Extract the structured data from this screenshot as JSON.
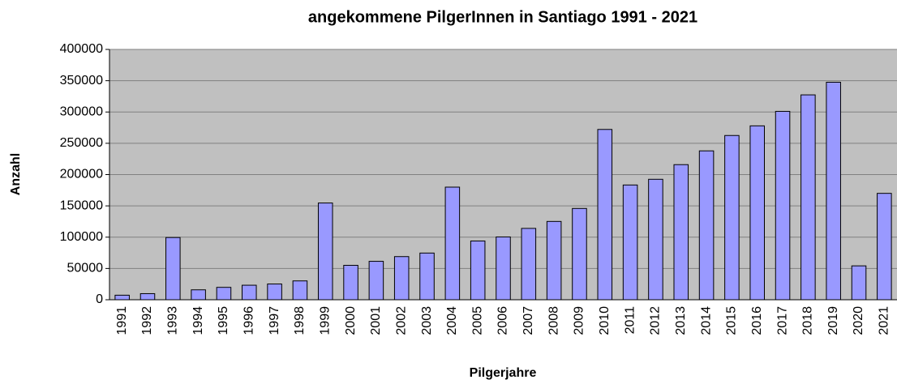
{
  "chart_data": {
    "type": "bar",
    "title": "angekommene PilgerInnen in Santiago 1991 - 2021",
    "x_label": "Pilgerjahre",
    "y_label": "Anzahl",
    "categories": [
      "1991",
      "1992",
      "1993",
      "1994",
      "1995",
      "1996",
      "1997",
      "1998",
      "1999",
      "2000",
      "2001",
      "2002",
      "2003",
      "2004",
      "2005",
      "2006",
      "2007",
      "2008",
      "2009",
      "2010",
      "2011",
      "2012",
      "2013",
      "2014",
      "2015",
      "2016",
      "2017",
      "2018",
      "2019",
      "2020",
      "2021"
    ],
    "values": [
      7274,
      9764,
      99436,
      15863,
      19821,
      23218,
      25179,
      30126,
      154613,
      55004,
      61418,
      68952,
      74614,
      179944,
      93924,
      100377,
      114026,
      125141,
      145877,
      272135,
      183366,
      192488,
      215880,
      237886,
      262458,
      277854,
      301036,
      327378,
      347578,
      54144,
      170000
    ],
    "color": "#9999ff",
    "ylim": [
      0,
      400000
    ],
    "yticks": [
      0,
      50000,
      100000,
      150000,
      200000,
      250000,
      300000,
      350000,
      400000
    ],
    "grid": true
  }
}
